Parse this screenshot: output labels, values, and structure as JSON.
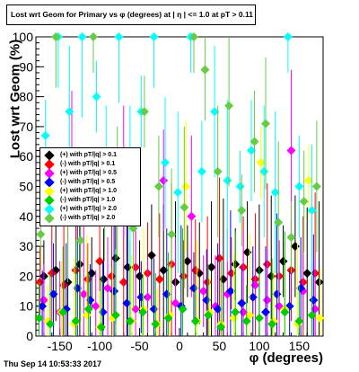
{
  "title": "Lost wrt Geom for Primary vs φ (degrees) at | η | <= 1.0 at pT > 0.11",
  "xlabel": "φ (degrees)",
  "ylabel": "Lost wrt Geom (%)",
  "timestamp": "Thu Sep 14 10:53:33 2017",
  "colors": {
    "pos_01": "#000000",
    "neg_01": "#ff0000",
    "pos_05": "#ff00ff",
    "neg_05": "#0000ff",
    "pos_10": "#ffff00",
    "neg_10": "#00cc00",
    "pos_20": "#00ffff",
    "neg_20": "#66cc44"
  },
  "chart_data": {
    "type": "scatter",
    "title": "Lost wrt Geom for Primary vs φ (degrees) at | η | <= 1.0 at pT > 0.11",
    "xlabel": "φ (degrees)",
    "ylabel": "Lost wrt Geom (%)",
    "xlim": [
      -180,
      180
    ],
    "ylim": [
      0,
      100
    ],
    "x_ticks": [
      -150,
      -100,
      -50,
      0,
      50,
      100,
      150
    ],
    "y_ticks": [
      0,
      10,
      20,
      30,
      40,
      50,
      60,
      70,
      80,
      90,
      100
    ],
    "grid": false,
    "legend_position": "left, middle",
    "series": [
      {
        "name": "(+) with pT/|q| > 0.1",
        "color": "#000000",
        "marker": "diamond",
        "points": [
          [
            -170,
            20
          ],
          [
            -155,
            22
          ],
          [
            -140,
            18
          ],
          [
            -125,
            24
          ],
          [
            -110,
            21
          ],
          [
            -95,
            19
          ],
          [
            -80,
            26
          ],
          [
            -65,
            23
          ],
          [
            -50,
            20
          ],
          [
            -35,
            27
          ],
          [
            -20,
            22
          ],
          [
            -5,
            18
          ],
          [
            10,
            25
          ],
          [
            25,
            21
          ],
          [
            40,
            23
          ],
          [
            55,
            19
          ],
          [
            70,
            24
          ],
          [
            85,
            28
          ],
          [
            100,
            22
          ],
          [
            115,
            20
          ],
          [
            130,
            25
          ],
          [
            145,
            30
          ],
          [
            160,
            21
          ],
          [
            175,
            18
          ]
        ]
      },
      {
        "name": "(-) with pT/|q| > 0.1",
        "color": "#ff0000",
        "marker": "diamond",
        "points": [
          [
            -175,
            18
          ],
          [
            -160,
            21
          ],
          [
            -145,
            17
          ],
          [
            -130,
            22
          ],
          [
            -115,
            19
          ],
          [
            -100,
            25
          ],
          [
            -85,
            20
          ],
          [
            -70,
            18
          ],
          [
            -55,
            23
          ],
          [
            -40,
            21
          ],
          [
            -25,
            19
          ],
          [
            -10,
            24
          ],
          [
            5,
            20
          ],
          [
            20,
            22
          ],
          [
            35,
            18
          ],
          [
            50,
            26
          ],
          [
            65,
            21
          ],
          [
            80,
            23
          ],
          [
            95,
            19
          ],
          [
            110,
            24
          ],
          [
            125,
            20
          ],
          [
            140,
            22
          ],
          [
            155,
            18
          ],
          [
            170,
            21
          ]
        ]
      },
      {
        "name": "(+) with pT/|q| > 0.5",
        "color": "#ff00ff",
        "marker": "diamond",
        "points": [
          [
            -170,
            12
          ],
          [
            -150,
            8
          ],
          [
            -135,
            60
          ],
          [
            -120,
            14
          ],
          [
            -105,
            10
          ],
          [
            -90,
            16
          ],
          [
            -70,
            55
          ],
          [
            -55,
            9
          ],
          [
            -40,
            13
          ],
          [
            -20,
            52
          ],
          [
            -5,
            11
          ],
          [
            15,
            40
          ],
          [
            30,
            15
          ],
          [
            45,
            10
          ],
          [
            60,
            14
          ],
          [
            80,
            8
          ],
          [
            95,
            17
          ],
          [
            110,
            12
          ],
          [
            125,
            10
          ],
          [
            140,
            62
          ],
          [
            155,
            15
          ],
          [
            170,
            9
          ]
        ]
      },
      {
        "name": "(-) with pT/|q| > 0.5",
        "color": "#0000ff",
        "marker": "diamond",
        "points": [
          [
            -172,
            10
          ],
          [
            -158,
            14
          ],
          [
            -142,
            9
          ],
          [
            -128,
            16
          ],
          [
            -112,
            12
          ],
          [
            -96,
            8
          ],
          [
            -82,
            15
          ],
          [
            -66,
            11
          ],
          [
            -48,
            13
          ],
          [
            -32,
            9
          ],
          [
            -16,
            14
          ],
          [
            2,
            10
          ],
          [
            18,
            16
          ],
          [
            34,
            12
          ],
          [
            48,
            9
          ],
          [
            64,
            15
          ],
          [
            78,
            11
          ],
          [
            92,
            13
          ],
          [
            108,
            8
          ],
          [
            122,
            14
          ],
          [
            138,
            10
          ],
          [
            152,
            16
          ],
          [
            168,
            12
          ]
        ]
      },
      {
        "name": "(+) with pT/|q| > 1.0",
        "color": "#ffff00",
        "marker": "diamond",
        "points": [
          [
            -165,
            5
          ],
          [
            -148,
            8
          ],
          [
            -132,
            4
          ],
          [
            -116,
            7
          ],
          [
            -100,
            3
          ],
          [
            -84,
            6
          ],
          [
            -60,
            5
          ],
          [
            -45,
            9
          ],
          [
            -28,
            4
          ],
          [
            -12,
            7
          ],
          [
            8,
            50
          ],
          [
            22,
            5
          ],
          [
            38,
            8
          ],
          [
            52,
            4
          ],
          [
            68,
            6
          ],
          [
            88,
            7
          ],
          [
            102,
            58
          ],
          [
            118,
            5
          ],
          [
            132,
            9
          ],
          [
            148,
            4
          ],
          [
            162,
            52
          ],
          [
            176,
            6
          ]
        ]
      },
      {
        "name": "(-) with pT/|q| > 1.0",
        "color": "#00cc00",
        "marker": "diamond",
        "points": [
          [
            -176,
            6
          ],
          [
            -162,
            4
          ],
          [
            -146,
            8
          ],
          [
            -130,
            5
          ],
          [
            -114,
            9
          ],
          [
            -98,
            3
          ],
          [
            -80,
            7
          ],
          [
            -62,
            5
          ],
          [
            -46,
            8
          ],
          [
            -30,
            4
          ],
          [
            -14,
            6
          ],
          [
            4,
            9
          ],
          [
            20,
            5
          ],
          [
            36,
            7
          ],
          [
            52,
            3
          ],
          [
            70,
            8
          ],
          [
            84,
            5
          ],
          [
            100,
            6
          ],
          [
            116,
            4
          ],
          [
            132,
            8
          ],
          [
            150,
            5
          ],
          [
            166,
            7
          ]
        ]
      },
      {
        "name": "(+) with pT/|q| > 2.0",
        "color": "#00ffff",
        "marker": "diamond",
        "points": [
          [
            -168,
            67
          ],
          [
            -152,
            100
          ],
          [
            -138,
            75
          ],
          [
            -122,
            100
          ],
          [
            -104,
            80
          ],
          [
            -92,
            60
          ],
          [
            -76,
            100
          ],
          [
            -62,
            50
          ],
          [
            -48,
            75
          ],
          [
            -32,
            100
          ],
          [
            -18,
            58
          ],
          [
            -2,
            48
          ],
          [
            14,
            100
          ],
          [
            28,
            55
          ],
          [
            44,
            75
          ],
          [
            60,
            52
          ],
          [
            76,
            50
          ],
          [
            90,
            62
          ],
          [
            106,
            55
          ],
          [
            120,
            48
          ],
          [
            136,
            100
          ],
          [
            150,
            50
          ],
          [
            166,
            42
          ]
        ]
      },
      {
        "name": "(-) with pT/|q| > 2.0",
        "color": "#66cc44",
        "marker": "diamond",
        "points": [
          [
            -174,
            34
          ],
          [
            -155,
            100
          ],
          [
            -140,
            40
          ],
          [
            -124,
            32
          ],
          [
            -108,
            100
          ],
          [
            -94,
            42
          ],
          [
            -78,
            48
          ],
          [
            -58,
            36
          ],
          [
            -44,
            75
          ],
          [
            -26,
            50
          ],
          [
            -10,
            34
          ],
          [
            6,
            43
          ],
          [
            18,
            100
          ],
          [
            32,
            89
          ],
          [
            48,
            55
          ],
          [
            62,
            77
          ],
          [
            78,
            42
          ],
          [
            94,
            65
          ],
          [
            108,
            71
          ],
          [
            124,
            38
          ],
          [
            140,
            33
          ],
          [
            156,
            45
          ],
          [
            172,
            50
          ]
        ]
      }
    ]
  }
}
